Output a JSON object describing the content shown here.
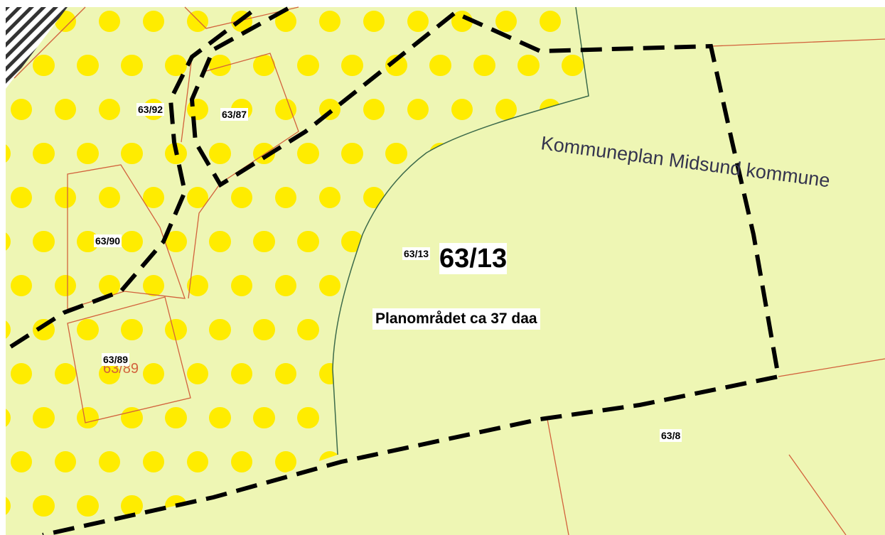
{
  "map_note": "Kommuneplan Midsund kommune",
  "plan_area": "Planområdet ca 37 daa",
  "main_parcel": {
    "small_label": "63/13",
    "label": "63/13"
  },
  "parcels": [
    {
      "label": "63/92"
    },
    {
      "label": "63/87"
    },
    {
      "label": "63/90"
    },
    {
      "label": "63/89"
    },
    {
      "label": "63/8"
    }
  ],
  "faded_label": "63/89"
}
